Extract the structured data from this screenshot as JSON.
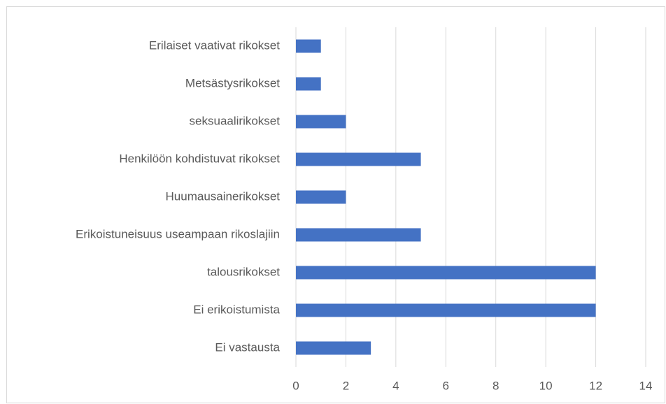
{
  "chart_data": {
    "type": "bar",
    "orientation": "horizontal",
    "categories": [
      "Erilaiset vaativat rikokset",
      "Metsästysrikokset",
      "seksuaalirikokset",
      "Henkilöön kohdistuvat rikokset",
      "Huumausainerikokset",
      "Erikoistuneisuus useampaan rikoslajiin",
      "talousrikokset",
      "Ei erikoistumista",
      "Ei vastausta"
    ],
    "values": [
      1,
      1,
      2,
      5,
      2,
      5,
      12,
      12,
      3
    ],
    "color": "#4472c4",
    "xlim": [
      0,
      14
    ],
    "xticks": [
      0,
      2,
      4,
      6,
      8,
      10,
      12,
      14
    ],
    "grid": true
  }
}
